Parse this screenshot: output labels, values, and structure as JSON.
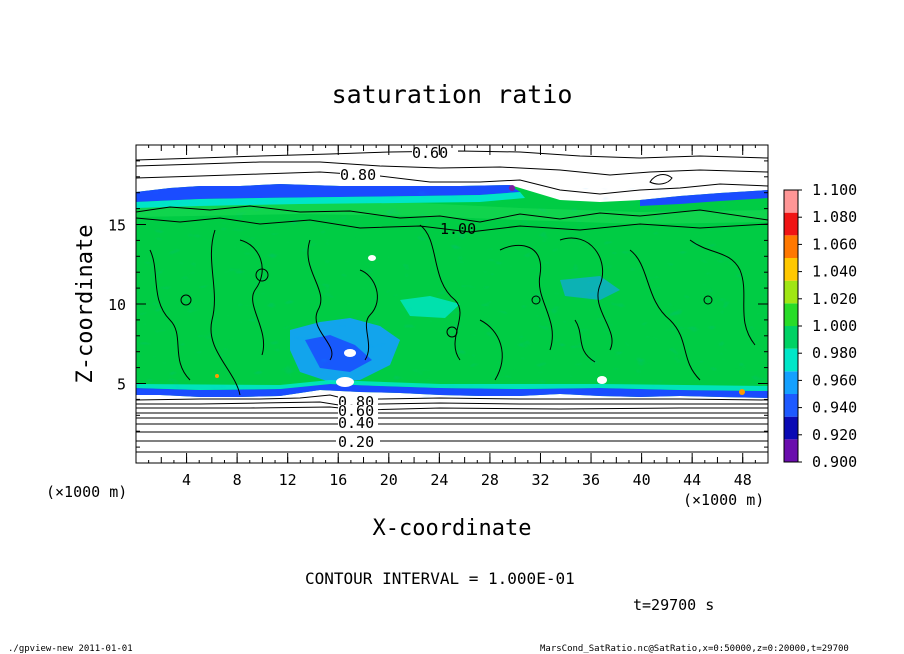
{
  "chart_data": {
    "type": "heatmap",
    "title": "saturation ratio",
    "xlabel": "X-coordinate",
    "ylabel": "Z-coordinate",
    "x_unit": "(×1000 m)",
    "y_unit": "(×1000 m)",
    "xlim": [
      0,
      50
    ],
    "ylim": [
      0,
      20
    ],
    "x_ticks": [
      4,
      8,
      12,
      16,
      20,
      24,
      28,
      32,
      36,
      40,
      44,
      48
    ],
    "y_ticks": [
      5,
      10,
      15
    ],
    "colorbar": {
      "levels": [
        "0.900",
        "0.920",
        "0.940",
        "0.960",
        "0.980",
        "1.000",
        "1.020",
        "1.040",
        "1.060",
        "1.080",
        "1.100"
      ],
      "colors": [
        "#6a0dad",
        "#0a0ab4",
        "#1e5aff",
        "#14a0ff",
        "#00e6c8",
        "#00d264",
        "#28dc28",
        "#a0e614",
        "#ffc800",
        "#ff7800",
        "#f01414",
        "#ff9696"
      ]
    },
    "contour_labels": [
      "0.60",
      "0.80",
      "1.00",
      "0.80",
      "0.60",
      "0.40",
      "0.20"
    ],
    "annotations": {
      "contour_interval": "CONTOUR INTERVAL = 1.000E-01",
      "time": "t=29700 s"
    }
  },
  "footer": {
    "left": "./gpview-new  2011-01-01",
    "right": "MarsCond_SatRatio.nc@SatRatio,x=0:50000,z=0:20000,t=29700"
  }
}
